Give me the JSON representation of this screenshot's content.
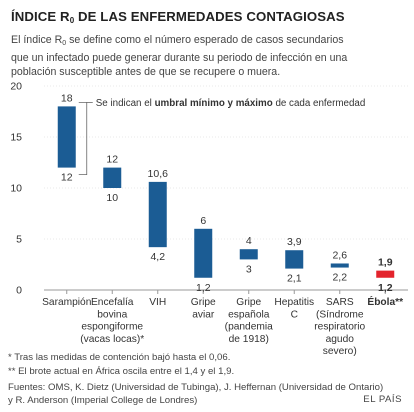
{
  "title": {
    "before": "ÍNDICE R",
    "subscript": "0",
    "after": " DE LAS ENFERMEDADES CONTAGIOSAS"
  },
  "intro": {
    "line1_before": "El índice R",
    "line1_sub": "0",
    "line1_after": " se define como el número esperado de casos secundarios",
    "line2": "que un infectado puede generar durante su periodo de infección en una",
    "line3": "población susceptible antes de que se recupere o muera."
  },
  "colors": {
    "bar": "#1b5c94",
    "highlight": "#e3232c",
    "axis": "#999999",
    "grid": "#d6d6d6",
    "text": "#333333"
  },
  "chart_data": {
    "type": "bar",
    "subtype": "floating-range",
    "ylim": [
      0,
      20
    ],
    "yticks": [
      "0",
      "5",
      "10",
      "15",
      "20"
    ],
    "grid": false,
    "annotation": {
      "before": "Se indican el ",
      "bold": "umbral mínimo y máximo",
      "after": " de cada enfermedad"
    },
    "series": [
      {
        "label_lines": [
          "Sarampión"
        ],
        "min": 12,
        "max": 18,
        "min_label": "12",
        "max_label": "18",
        "highlight": false
      },
      {
        "label_lines": [
          "Encefalía",
          "bovina",
          "espongiforme",
          "(vacas locas)*"
        ],
        "min": 10,
        "max": 12,
        "min_label": "10",
        "max_label": "12",
        "highlight": false
      },
      {
        "label_lines": [
          "VIH"
        ],
        "min": 4.2,
        "max": 10.6,
        "min_label": "4,2",
        "max_label": "10,6",
        "highlight": false
      },
      {
        "label_lines": [
          "Gripe",
          "aviar"
        ],
        "min": 1.2,
        "max": 6,
        "min_label": "1,2",
        "max_label": "6",
        "highlight": false
      },
      {
        "label_lines": [
          "Gripe",
          "española",
          "(pandemia",
          "de 1918)"
        ],
        "min": 3,
        "max": 4,
        "min_label": "3",
        "max_label": "4",
        "highlight": false
      },
      {
        "label_lines": [
          "Hepatitis",
          "C"
        ],
        "min": 2.1,
        "max": 3.9,
        "min_label": "2,1",
        "max_label": "3,9",
        "highlight": false
      },
      {
        "label_lines": [
          "SARS",
          "(Síndrome",
          "respiratorio",
          "agudo",
          "severo)"
        ],
        "min": 2.2,
        "max": 2.6,
        "min_label": "2,2",
        "max_label": "2,6",
        "highlight": false
      },
      {
        "label_lines": [
          "Ébola**"
        ],
        "min": 1.2,
        "max": 1.9,
        "min_label": "1,2",
        "max_label": "1,9",
        "highlight": true
      }
    ]
  },
  "notes": {
    "note1": "* Tras las medidas de contención bajó hasta el 0,06.",
    "note2": "** El brote actual en África oscila entre el 1,4 y el 1,9."
  },
  "sources": {
    "line1": "Fuentes: OMS, K. Dietz (Universidad de Tubinga), J. Heffernan (Universidad de Ontario)",
    "line2": "y R. Anderson (Imperial College de Londres)"
  },
  "credit": "EL PAÍS"
}
